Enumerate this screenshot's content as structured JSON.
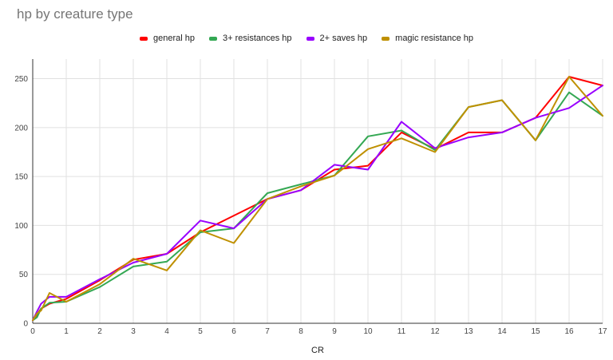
{
  "chart_data": {
    "type": "line",
    "title": "hp by creature type",
    "xlabel": "CR",
    "ylabel": "",
    "xlim": [
      0,
      17
    ],
    "ylim": [
      0,
      270
    ],
    "xticks": [
      0,
      1,
      2,
      3,
      4,
      5,
      6,
      7,
      8,
      9,
      10,
      11,
      12,
      13,
      14,
      15,
      16,
      17
    ],
    "yticks": [
      0,
      50,
      100,
      150,
      200,
      250
    ],
    "grid": true,
    "legend_position": "top",
    "x": [
      0,
      0.125,
      0.25,
      0.5,
      1,
      2,
      3,
      4,
      5,
      6,
      7,
      8,
      9,
      10,
      11,
      12,
      13,
      14,
      15,
      16,
      17
    ],
    "series": [
      {
        "name": "general hp",
        "color": "#ff0000",
        "values": [
          3,
          9,
          15,
          20,
          25,
          44,
          65,
          71,
          93,
          110,
          127,
          136,
          157,
          161,
          195,
          178,
          195,
          195,
          210,
          252,
          243
        ]
      },
      {
        "name": "3+ resistances hp",
        "color": "#34a853",
        "values": [
          3,
          6,
          15,
          21,
          22,
          37,
          58,
          63,
          93,
          97,
          133,
          142,
          151,
          191,
          197,
          177,
          221,
          228,
          187,
          236,
          212
        ]
      },
      {
        "name": "2+ saves hp",
        "color": "#9900ff",
        "values": [
          3,
          12,
          20,
          27,
          27,
          45,
          62,
          71,
          105,
          97,
          127,
          136,
          162,
          157,
          206,
          179,
          190,
          195,
          210,
          220,
          243
        ]
      },
      {
        "name": "magic resistance hp",
        "color": "#bf9000",
        "values": [
          3,
          10,
          13,
          31,
          22,
          40,
          66,
          54,
          95,
          82,
          127,
          140,
          151,
          178,
          189,
          175,
          221,
          228,
          187,
          252,
          212
        ]
      }
    ]
  }
}
